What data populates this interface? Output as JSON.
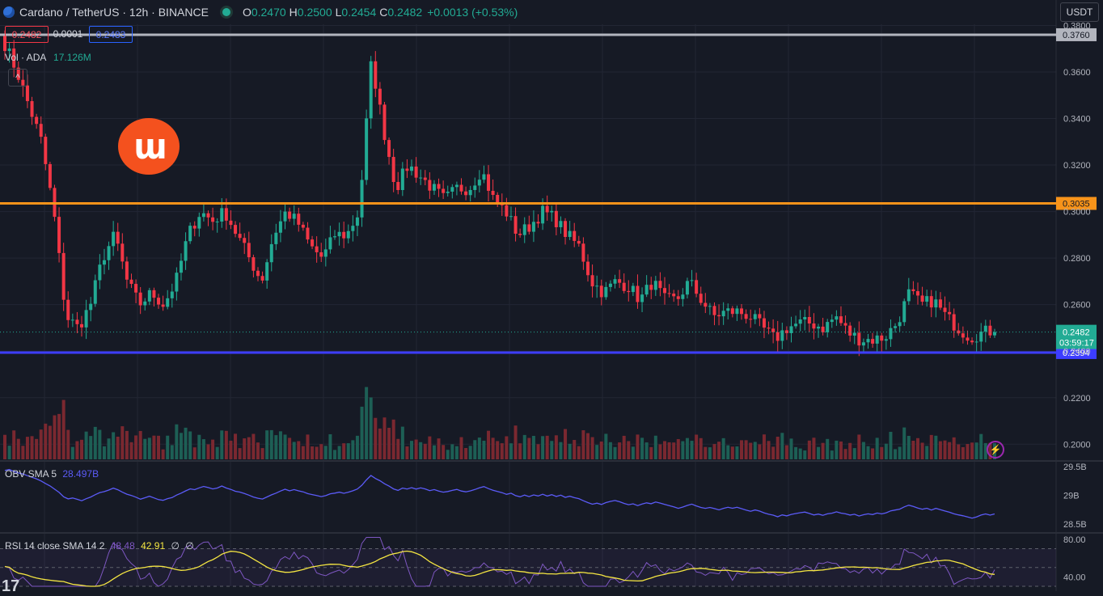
{
  "header": {
    "symbol_title": "Cardano / TetherUS · 12h · BINANCE",
    "open_label": "O",
    "open": "0.2470",
    "high_label": "H",
    "high": "0.2500",
    "low_label": "L",
    "low": "0.2454",
    "close_label": "C",
    "close": "0.2482",
    "change": "+0.0013 (+0.53%)"
  },
  "currency": "USDT",
  "trade": {
    "sell": "0.2482",
    "spread": "0.0001",
    "buy": "0.2483"
  },
  "volume_legend": {
    "label": "Vol · ADA",
    "value": "17.126M"
  },
  "obv_legend": {
    "label": "OBV SMA 5",
    "value": "28.497B"
  },
  "rsi_legend": {
    "label": "RSI 14 close SMA 14 2",
    "rsi": "48.48",
    "sma": "42.91",
    "extra1": "∅",
    "extra2": "∅"
  },
  "colors": {
    "bg": "#161a25",
    "up": "#22ab94",
    "down": "#f23645",
    "orange": "#f7931a",
    "blue": "#3d3dff",
    "gray": "#b2b5be",
    "obv": "#5b5bf7",
    "rsi": "#7e57c2",
    "rsi_sma": "#f5e642"
  },
  "chart_data": {
    "type": "candlestick",
    "timeframe": "12h",
    "price_axis": {
      "ylim": [
        0.1935,
        0.3805
      ],
      "ticks": [
        "0.3800",
        "0.3600",
        "0.3400",
        "0.3200",
        "0.3000",
        "0.2800",
        "0.2600",
        "0.2400",
        "0.2200",
        "0.2000"
      ]
    },
    "horizontal_lines": [
      {
        "label": "0.3760",
        "value": 0.376,
        "color": "#b2b5be"
      },
      {
        "label": "0.3035",
        "value": 0.3035,
        "color": "#f7931a"
      },
      {
        "label": "0.2394",
        "value": 0.2394,
        "color": "#3d3dff"
      }
    ],
    "last_price": {
      "label": "0.2482",
      "countdown": "03:59:17",
      "value": 0.2482
    },
    "close_path": [
      0.372,
      0.36,
      0.345,
      0.33,
      0.3,
      0.255,
      0.25,
      0.26,
      0.28,
      0.29,
      0.27,
      0.26,
      0.265,
      0.26,
      0.27,
      0.29,
      0.3,
      0.296,
      0.3,
      0.29,
      0.28,
      0.27,
      0.29,
      0.3,
      0.295,
      0.285,
      0.28,
      0.29,
      0.29,
      0.3,
      0.365,
      0.335,
      0.31,
      0.32,
      0.315,
      0.31,
      0.305,
      0.31,
      0.31,
      0.318,
      0.305,
      0.3,
      0.29,
      0.294,
      0.3,
      0.297,
      0.29,
      0.285,
      0.27,
      0.265,
      0.27,
      0.268,
      0.262,
      0.27,
      0.262,
      0.262,
      0.27,
      0.262,
      0.255,
      0.257,
      0.257,
      0.255,
      0.25,
      0.245,
      0.25,
      0.252,
      0.252,
      0.25,
      0.255,
      0.248,
      0.245,
      0.245,
      0.246,
      0.252,
      0.265,
      0.26,
      0.262,
      0.255,
      0.25,
      0.246,
      0.248,
      0.249
    ],
    "volume": {
      "label": "Vol · ADA",
      "last": "17.126M"
    },
    "obv": {
      "label": "OBV SMA 5",
      "last": "28.497B",
      "ticks": [
        "29.5B",
        "29B",
        "28.5B"
      ],
      "ylim": [
        28.37,
        29.57
      ]
    },
    "rsi": {
      "label": "RSI 14 close SMA 14 2",
      "rsi": 48.48,
      "sma": 42.91,
      "ticks": [
        "80.00",
        "40.00"
      ],
      "ylim": [
        30,
        85
      ],
      "bands": [
        70,
        50,
        30
      ]
    }
  }
}
